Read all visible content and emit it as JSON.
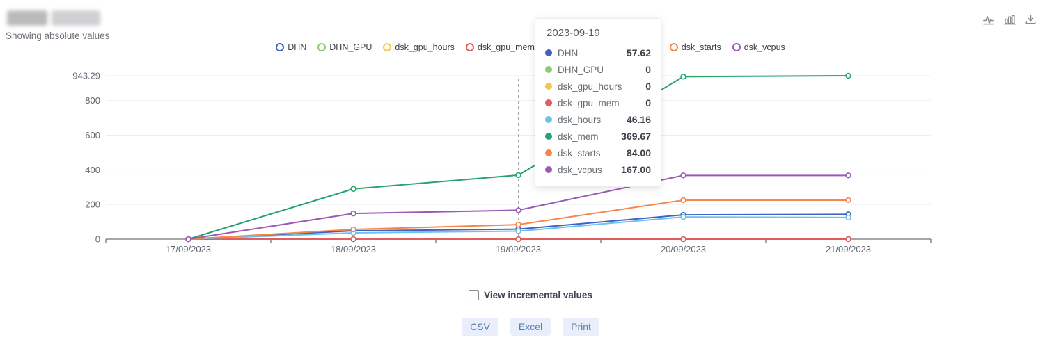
{
  "header": {
    "title_redacted": true,
    "subtitle": "Showing absolute values"
  },
  "toolbar": {
    "icons": [
      "line-chart",
      "bar-chart",
      "download"
    ]
  },
  "legend": {
    "items": [
      {
        "label": "DHN",
        "color": "#4161c4"
      },
      {
        "label": "DHN_GPU",
        "color": "#8bcc6d"
      },
      {
        "label": "dsk_gpu_hours",
        "color": "#f3c74f"
      },
      {
        "label": "dsk_gpu_mem",
        "color": "#e25d5d"
      },
      {
        "label": "dsk_hours",
        "color": "#6cc3e8"
      },
      {
        "label": "dsk_mem",
        "color": "#27a36d"
      },
      {
        "label": "dsk_starts",
        "color": "#f58549"
      },
      {
        "label": "dsk_vcpus",
        "color": "#9b59b6"
      }
    ]
  },
  "tooltip": {
    "date": "2023-09-19",
    "rows": [
      {
        "label": "DHN",
        "color": "#4161c4",
        "value": "57.62"
      },
      {
        "label": "DHN_GPU",
        "color": "#8bcc6d",
        "value": "0"
      },
      {
        "label": "dsk_gpu_hours",
        "color": "#f3c74f",
        "value": "0"
      },
      {
        "label": "dsk_gpu_mem",
        "color": "#e25d5d",
        "value": "0"
      },
      {
        "label": "dsk_hours",
        "color": "#6cc3e8",
        "value": "46.16"
      },
      {
        "label": "dsk_mem",
        "color": "#27a36d",
        "value": "369.67"
      },
      {
        "label": "dsk_starts",
        "color": "#f58549",
        "value": "84.00"
      },
      {
        "label": "dsk_vcpus",
        "color": "#9b59b6",
        "value": "167.00"
      }
    ]
  },
  "chart_data": {
    "type": "line",
    "x": [
      "17/09/2023",
      "18/09/2023",
      "19/09/2023",
      "20/09/2023",
      "21/09/2023"
    ],
    "series": [
      {
        "name": "DHN",
        "color": "#4161c4",
        "values": [
          0,
          48,
          57.62,
          140,
          143
        ]
      },
      {
        "name": "DHN_GPU",
        "color": "#8bcc6d",
        "values": [
          0,
          0,
          0,
          0,
          0
        ]
      },
      {
        "name": "dsk_gpu_hours",
        "color": "#f3c74f",
        "values": [
          0,
          0,
          0,
          0,
          0
        ]
      },
      {
        "name": "dsk_gpu_mem",
        "color": "#e25d5d",
        "values": [
          0,
          0,
          0,
          0,
          0
        ]
      },
      {
        "name": "dsk_hours",
        "color": "#6cc3e8",
        "values": [
          0,
          36,
          46.16,
          128,
          125
        ]
      },
      {
        "name": "dsk_mem",
        "color": "#27a36d",
        "values": [
          0,
          290,
          369.67,
          938,
          943.29
        ]
      },
      {
        "name": "dsk_starts",
        "color": "#f58549",
        "values": [
          0,
          56,
          84,
          225,
          225
        ]
      },
      {
        "name": "dsk_vcpus",
        "color": "#9b59b6",
        "values": [
          0,
          148,
          167,
          368,
          368
        ]
      }
    ],
    "yticks": [
      {
        "label": "0",
        "value": 0
      },
      {
        "label": "200",
        "value": 200
      },
      {
        "label": "400",
        "value": 400
      },
      {
        "label": "600",
        "value": 600
      },
      {
        "label": "800",
        "value": 800
      },
      {
        "label": "943.29",
        "value": 943.29
      }
    ],
    "ylim": [
      0,
      943.29
    ],
    "grid": true,
    "legend_position": "top",
    "crosshair_index": 2,
    "marker": "open-circle"
  },
  "controls": {
    "incremental_label": "View incremental values",
    "incremental_checked": false,
    "export_buttons": [
      "CSV",
      "Excel",
      "Print"
    ]
  }
}
